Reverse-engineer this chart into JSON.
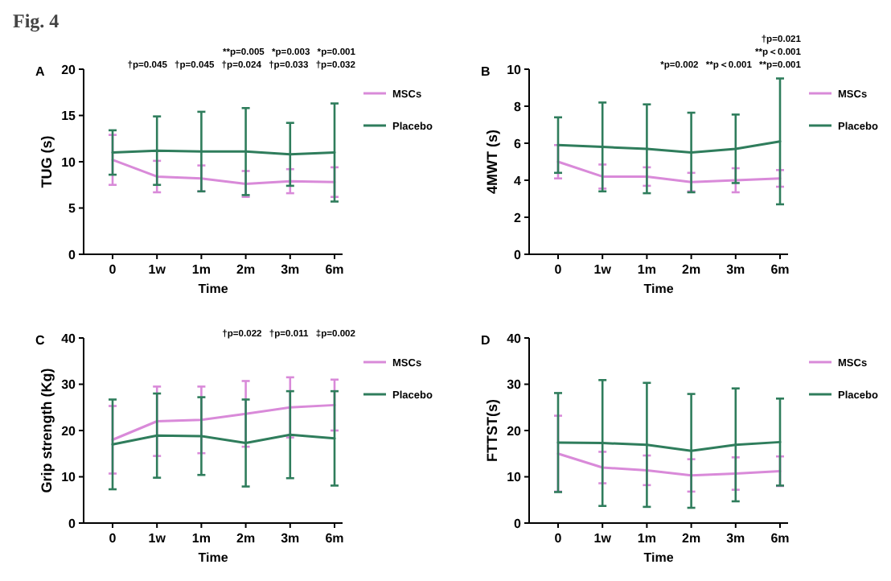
{
  "chart_data": [
    {
      "type": "line",
      "title": "A",
      "xlabel": "Time",
      "ylabel": "TUG (s)",
      "categories": [
        "0",
        "1w",
        "1m",
        "2m",
        "3m",
        "6m"
      ],
      "ylim": [
        0,
        20
      ],
      "yticks": [
        0,
        5,
        10,
        15,
        20
      ],
      "grid": false,
      "legend": "right",
      "marker": "none",
      "line_style": "solid",
      "series": [
        {
          "name": "MSCs",
          "color": "#d98ad9",
          "values": [
            10.2,
            8.4,
            8.2,
            7.6,
            7.9,
            7.8
          ],
          "errors": [
            2.7,
            1.7,
            1.4,
            1.4,
            1.3,
            1.6
          ]
        },
        {
          "name": "Placebo",
          "color": "#2f7d5c",
          "values": [
            11.0,
            11.2,
            11.1,
            11.1,
            10.8,
            11.0
          ],
          "errors": [
            2.4,
            3.7,
            4.3,
            4.7,
            3.4,
            5.3
          ]
        }
      ],
      "annotations": [
        "Fig. 4",
        "**p=0.005 *p=0.003 *p=0.001",
        "†p=0.045 †p=0.045 †p=0.024 †p=0.033 †p=0.032"
      ]
    },
    {
      "type": "line",
      "title": "B",
      "xlabel": "Time",
      "ylabel": "4MWT (s)",
      "categories": [
        "0",
        "1w",
        "1m",
        "2m",
        "3m",
        "6m"
      ],
      "ylim": [
        0,
        10
      ],
      "yticks": [
        0,
        2,
        4,
        6,
        8,
        10
      ],
      "grid": false,
      "legend": "right",
      "marker": "none",
      "line_style": "solid",
      "series": [
        {
          "name": "MSCs",
          "color": "#d98ad9",
          "values": [
            5.0,
            4.2,
            4.2,
            3.9,
            4.0,
            4.1
          ],
          "errors": [
            0.9,
            0.65,
            0.5,
            0.5,
            0.65,
            0.45
          ]
        },
        {
          "name": "Placebo",
          "color": "#2f7d5c",
          "values": [
            5.9,
            5.8,
            5.7,
            5.5,
            5.7,
            6.1
          ],
          "errors": [
            1.5,
            2.4,
            2.4,
            2.15,
            1.85,
            3.4
          ]
        }
      ],
      "annotations": [
        "†p=0.021",
        "**p＜0.001",
        "*p=0.002 **p＜0.001 **p=0.001"
      ]
    },
    {
      "type": "line",
      "title": "C",
      "xlabel": "Time",
      "ylabel": "Grip strength (Kg)",
      "categories": [
        "0",
        "1w",
        "1m",
        "2m",
        "3m",
        "6m"
      ],
      "ylim": [
        0,
        40
      ],
      "yticks": [
        0,
        10,
        20,
        30,
        40
      ],
      "grid": false,
      "legend": "right",
      "marker": "none",
      "line_style": "solid",
      "series": [
        {
          "name": "MSCs",
          "color": "#d98ad9",
          "values": [
            18,
            22,
            22.3,
            23.6,
            25,
            25.5
          ],
          "errors": [
            7.3,
            7.5,
            7.2,
            7.1,
            6.5,
            5.5
          ]
        },
        {
          "name": "Placebo",
          "color": "#2f7d5c",
          "values": [
            17,
            18.9,
            18.8,
            17.3,
            19.1,
            18.3
          ],
          "errors": [
            9.7,
            9.1,
            8.4,
            9.4,
            9.4,
            10.2
          ]
        }
      ],
      "annotations": [
        "†p=0.022 †p=0.011 ‡p=0.002"
      ]
    },
    {
      "type": "line",
      "title": "D",
      "xlabel": "Time",
      "ylabel": "FTTST(s)",
      "categories": [
        "0",
        "1w",
        "1m",
        "2m",
        "3m",
        "6m"
      ],
      "ylim": [
        0,
        40
      ],
      "yticks": [
        0,
        10,
        20,
        30,
        40
      ],
      "grid": false,
      "legend": "right",
      "marker": "none",
      "line_style": "solid",
      "series": [
        {
          "name": "MSCs",
          "color": "#d98ad9",
          "values": [
            15,
            12,
            11.4,
            10.3,
            10.7,
            11.2
          ],
          "errors": [
            8.2,
            3.4,
            3.2,
            3.5,
            3.5,
            3.2
          ]
        },
        {
          "name": "Placebo",
          "color": "#2f7d5c",
          "values": [
            17.4,
            17.3,
            16.9,
            15.6,
            16.9,
            17.5
          ],
          "errors": [
            10.7,
            13.6,
            13.4,
            12.3,
            12.2,
            9.4
          ]
        }
      ]
    }
  ]
}
